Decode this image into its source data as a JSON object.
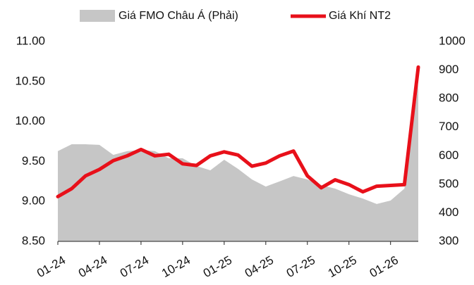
{
  "chart_data": {
    "type": "line",
    "categories": [
      "01-24",
      null,
      null,
      "04-24",
      null,
      null,
      "07-24",
      null,
      null,
      "10-24",
      null,
      null,
      "01-25",
      null,
      null,
      "04-25",
      null,
      null,
      "07-25",
      null,
      null,
      "10-25",
      null,
      null,
      "01-26",
      null,
      null
    ],
    "series": [
      {
        "name": "Giá FMO Châu Á (Phải)",
        "color": "#c6c6c6",
        "axis": "y2",
        "type": "area",
        "values": [
          616,
          640,
          640,
          638,
          603,
          616,
          620,
          616,
          591,
          591,
          564,
          549,
          586,
          554,
          517,
          492,
          510,
          529,
          517,
          497,
          485,
          465,
          450,
          431,
          443,
          485,
          850
        ]
      },
      {
        "name": "Giá Khí NT2",
        "color": "#e8101a",
        "type": "line",
        "values": [
          9.06,
          9.16,
          9.32,
          9.4,
          9.51,
          9.57,
          9.65,
          9.57,
          9.59,
          9.47,
          9.45,
          9.57,
          9.62,
          9.58,
          9.44,
          9.48,
          9.57,
          9.63,
          9.32,
          9.17,
          9.27,
          9.21,
          9.12,
          9.19,
          9.2,
          9.21,
          10.68
        ]
      }
    ],
    "ylim": [
      8.5,
      11
    ],
    "yticks": [
      {
        "value": 8.5,
        "label": "8.50"
      },
      {
        "value": 9,
        "label": "9.00"
      },
      {
        "value": 9.5,
        "label": "9.50"
      },
      {
        "value": 10,
        "label": "10.00"
      },
      {
        "value": 10.5,
        "label": "10.50"
      },
      {
        "value": 11,
        "label": "11.00"
      }
    ],
    "y2lim": [
      300,
      1000
    ],
    "y2ticks": [
      300,
      400,
      500,
      600,
      700,
      800,
      900,
      1000
    ]
  }
}
